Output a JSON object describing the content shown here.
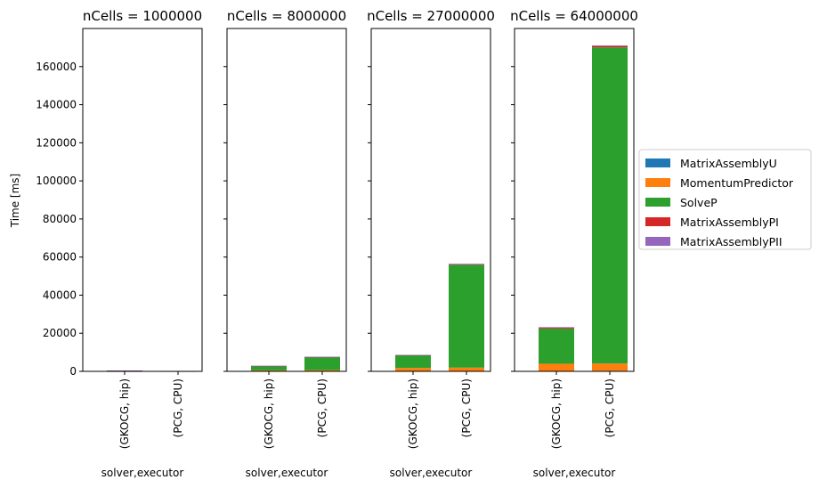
{
  "chart_data": {
    "type": "bar",
    "stacked": true,
    "ylabel": "Time [ms]",
    "xlabel": "solver,executor",
    "yticks": [
      0,
      20000,
      40000,
      60000,
      80000,
      100000,
      120000,
      140000,
      160000
    ],
    "ylim": [
      0,
      180000
    ],
    "categories": [
      "(GKOCG, hip)",
      "(PCG, CPU)"
    ],
    "legend": {
      "placement": "right",
      "entries": [
        {
          "name": "MatrixAssemblyU",
          "color": "#1f77b4"
        },
        {
          "name": "MomentumPredictor",
          "color": "#ff7f0e"
        },
        {
          "name": "SolveP",
          "color": "#2ca02c"
        },
        {
          "name": "MatrixAssemblyPI",
          "color": "#d62728"
        },
        {
          "name": "MatrixAssemblyPII",
          "color": "#9467bd"
        }
      ]
    },
    "panels": [
      {
        "title": "nCells = 1000000",
        "series": [
          {
            "name": "MatrixAssemblyU",
            "values": [
              20,
              15
            ]
          },
          {
            "name": "MomentumPredictor",
            "values": [
              60,
              40
            ]
          },
          {
            "name": "SolveP",
            "values": [
              300,
              0
            ]
          },
          {
            "name": "MatrixAssemblyPI",
            "values": [
              20,
              10
            ]
          },
          {
            "name": "MatrixAssemblyPII",
            "values": [
              5,
              5
            ]
          }
        ]
      },
      {
        "title": "nCells = 8000000",
        "series": [
          {
            "name": "MatrixAssemblyU",
            "values": [
              50,
              60
            ]
          },
          {
            "name": "MomentumPredictor",
            "values": [
              500,
              600
            ]
          },
          {
            "name": "SolveP",
            "values": [
              2200,
              6700
            ]
          },
          {
            "name": "MatrixAssemblyPI",
            "values": [
              150,
              250
            ]
          },
          {
            "name": "MatrixAssemblyPII",
            "values": [
              20,
              30
            ]
          }
        ]
      },
      {
        "title": "nCells = 27000000",
        "series": [
          {
            "name": "MatrixAssemblyU",
            "values": [
              100,
              150
            ]
          },
          {
            "name": "MomentumPredictor",
            "values": [
              1700,
              1800
            ]
          },
          {
            "name": "SolveP",
            "values": [
              6600,
              54000
            ]
          },
          {
            "name": "MatrixAssemblyPI",
            "values": [
              200,
              400
            ]
          },
          {
            "name": "MatrixAssemblyPII",
            "values": [
              50,
              100
            ]
          }
        ]
      },
      {
        "title": "nCells = 64000000",
        "series": [
          {
            "name": "MatrixAssemblyU",
            "values": [
              200,
              300
            ]
          },
          {
            "name": "MomentumPredictor",
            "values": [
              3800,
              3800
            ]
          },
          {
            "name": "SolveP",
            "values": [
              18500,
              166000
            ]
          },
          {
            "name": "MatrixAssemblyPI",
            "values": [
              600,
              800
            ]
          },
          {
            "name": "MatrixAssemblyPII",
            "values": [
              100,
              150
            ]
          }
        ]
      }
    ]
  }
}
